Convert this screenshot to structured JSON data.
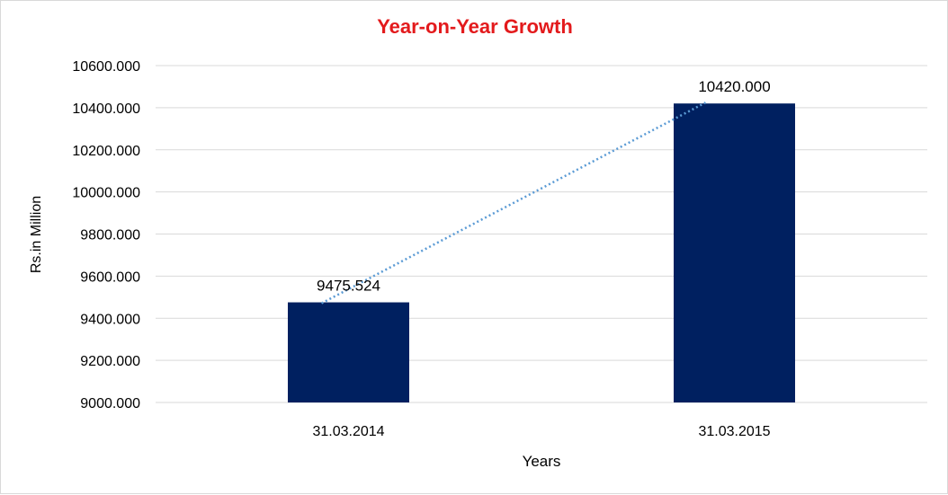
{
  "colors": {
    "title": "#e31a1c",
    "bar": "#002060",
    "trendline": "#5b9bd5",
    "gridline": "#d9d9d9"
  },
  "chart_data": {
    "type": "bar",
    "title": "Year-on-Year Growth",
    "xlabel": "Years",
    "ylabel": "Rs.in Million",
    "categories": [
      "31.03.2014",
      "31.03.2015"
    ],
    "values": [
      9475.524,
      10420.0
    ],
    "data_labels": [
      "9475.524",
      "10420.000"
    ],
    "ylim": [
      9000,
      10600
    ],
    "yticks": [
      9000,
      9200,
      9400,
      9600,
      9800,
      10000,
      10200,
      10400,
      10600
    ],
    "ytick_labels": [
      "9000.000",
      "9200.000",
      "9400.000",
      "9600.000",
      "9800.000",
      "10000.000",
      "10200.000",
      "10400.000",
      "10600.000"
    ],
    "grid": true,
    "legend": "none",
    "trendline": "linear, dotted"
  }
}
